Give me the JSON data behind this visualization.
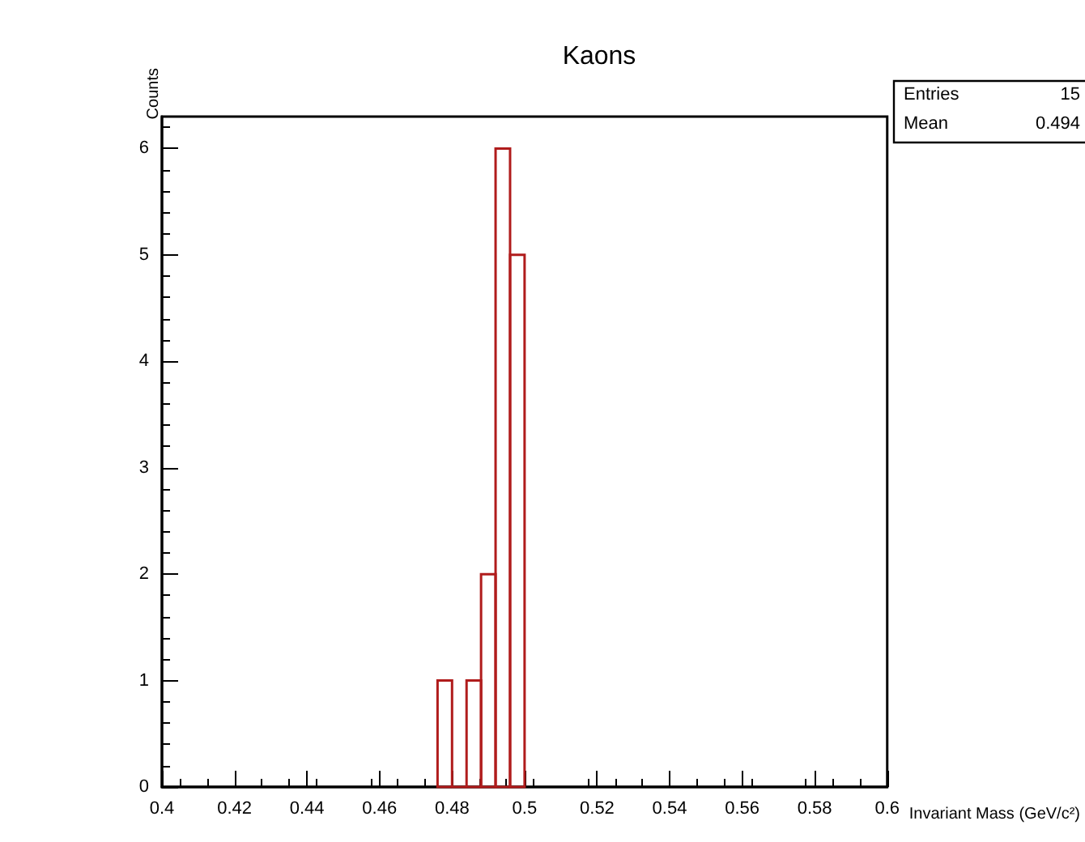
{
  "chart_data": {
    "type": "histogram",
    "title": "Kaons",
    "xlabel": "Invariant Mass (GeV/c²)",
    "ylabel": "Counts",
    "bins": [
      0.476,
      0.48,
      0.484,
      0.488,
      0.492,
      0.496,
      0.5
    ],
    "values": [
      1,
      0,
      1,
      2,
      6,
      5
    ],
    "color": "#b01c1c",
    "xlim": [
      0.4,
      0.6
    ],
    "xticks": [
      0.4,
      0.42,
      0.44,
      0.46,
      0.48,
      0.5,
      0.52,
      0.54,
      0.56,
      0.58,
      0.6
    ],
    "ylim": [
      0,
      6.3
    ],
    "yticks": [
      0,
      1,
      2,
      3,
      4,
      5,
      6
    ],
    "grid": false,
    "legend": false,
    "annotations": [
      "Entries 15",
      "Mean 0.494"
    ]
  }
}
